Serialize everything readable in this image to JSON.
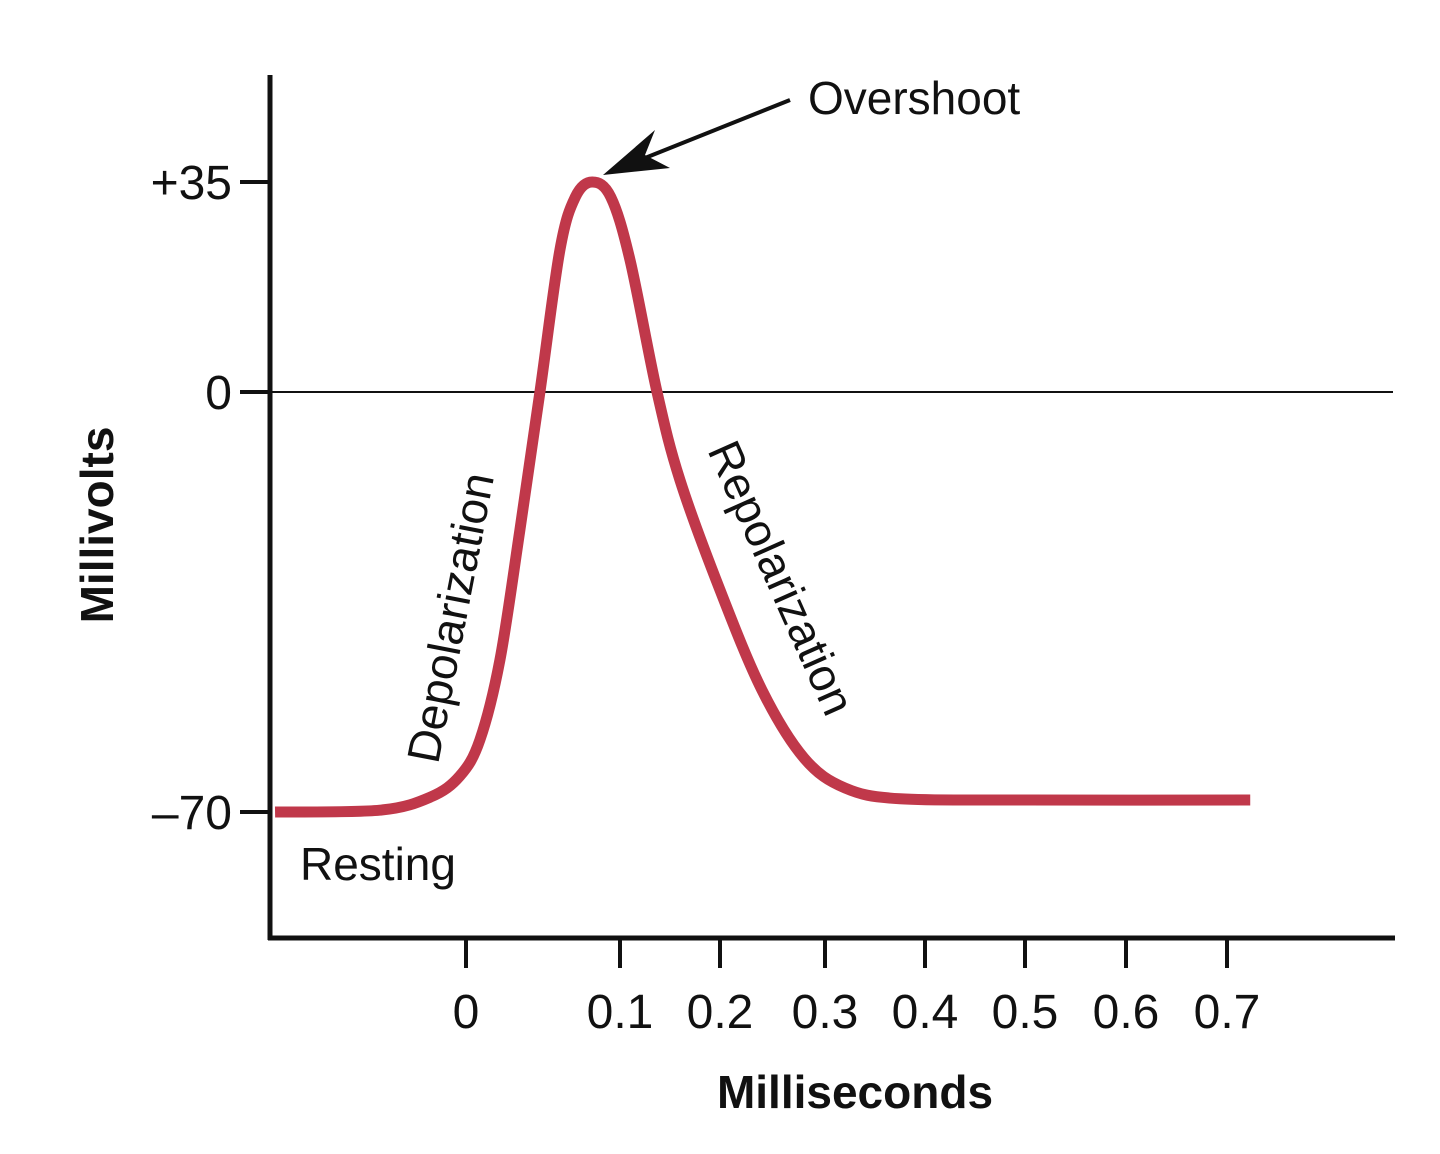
{
  "chart_data": {
    "type": "line",
    "title": "",
    "xlabel": "Milliseconds",
    "ylabel": "Millivolts",
    "x_ticks": [
      0,
      0.1,
      0.2,
      0.3,
      0.4,
      0.5,
      0.6,
      0.7
    ],
    "x_tick_labels": [
      "0",
      "0.1",
      "0.2",
      "0.3",
      "0.4",
      "0.5",
      "0.6",
      "0.7"
    ],
    "y_ticks": [
      35,
      0,
      -70
    ],
    "y_tick_labels": [
      "+35",
      "0",
      "–70"
    ],
    "ylim": [
      -92,
      55
    ],
    "grid": false,
    "reference_line": {
      "y": 0
    },
    "line_color": "#c0384a",
    "series": [
      {
        "x": [
          -0.124,
          -0.056,
          -0.023,
          -0.004,
          0.009,
          0.022,
          0.035,
          0.048,
          0.061,
          0.071,
          0.082,
          0.094,
          0.11,
          0.137,
          0.16,
          0.2,
          0.24,
          0.28,
          0.32,
          0.375,
          0.5,
          0.723
        ],
        "y": [
          -70,
          -69.7,
          -67.5,
          -64,
          -58,
          -44.7,
          -23,
          0,
          23.7,
          32.5,
          35,
          32.5,
          22,
          0,
          -14.7,
          -33,
          -49.7,
          -61,
          -66,
          -67.8,
          -68,
          -68
        ]
      }
    ],
    "annotations": {
      "overshoot": "Overshoot",
      "depolarization": "Depolarization",
      "repolarization": "Repolarization",
      "resting": "Resting"
    }
  }
}
